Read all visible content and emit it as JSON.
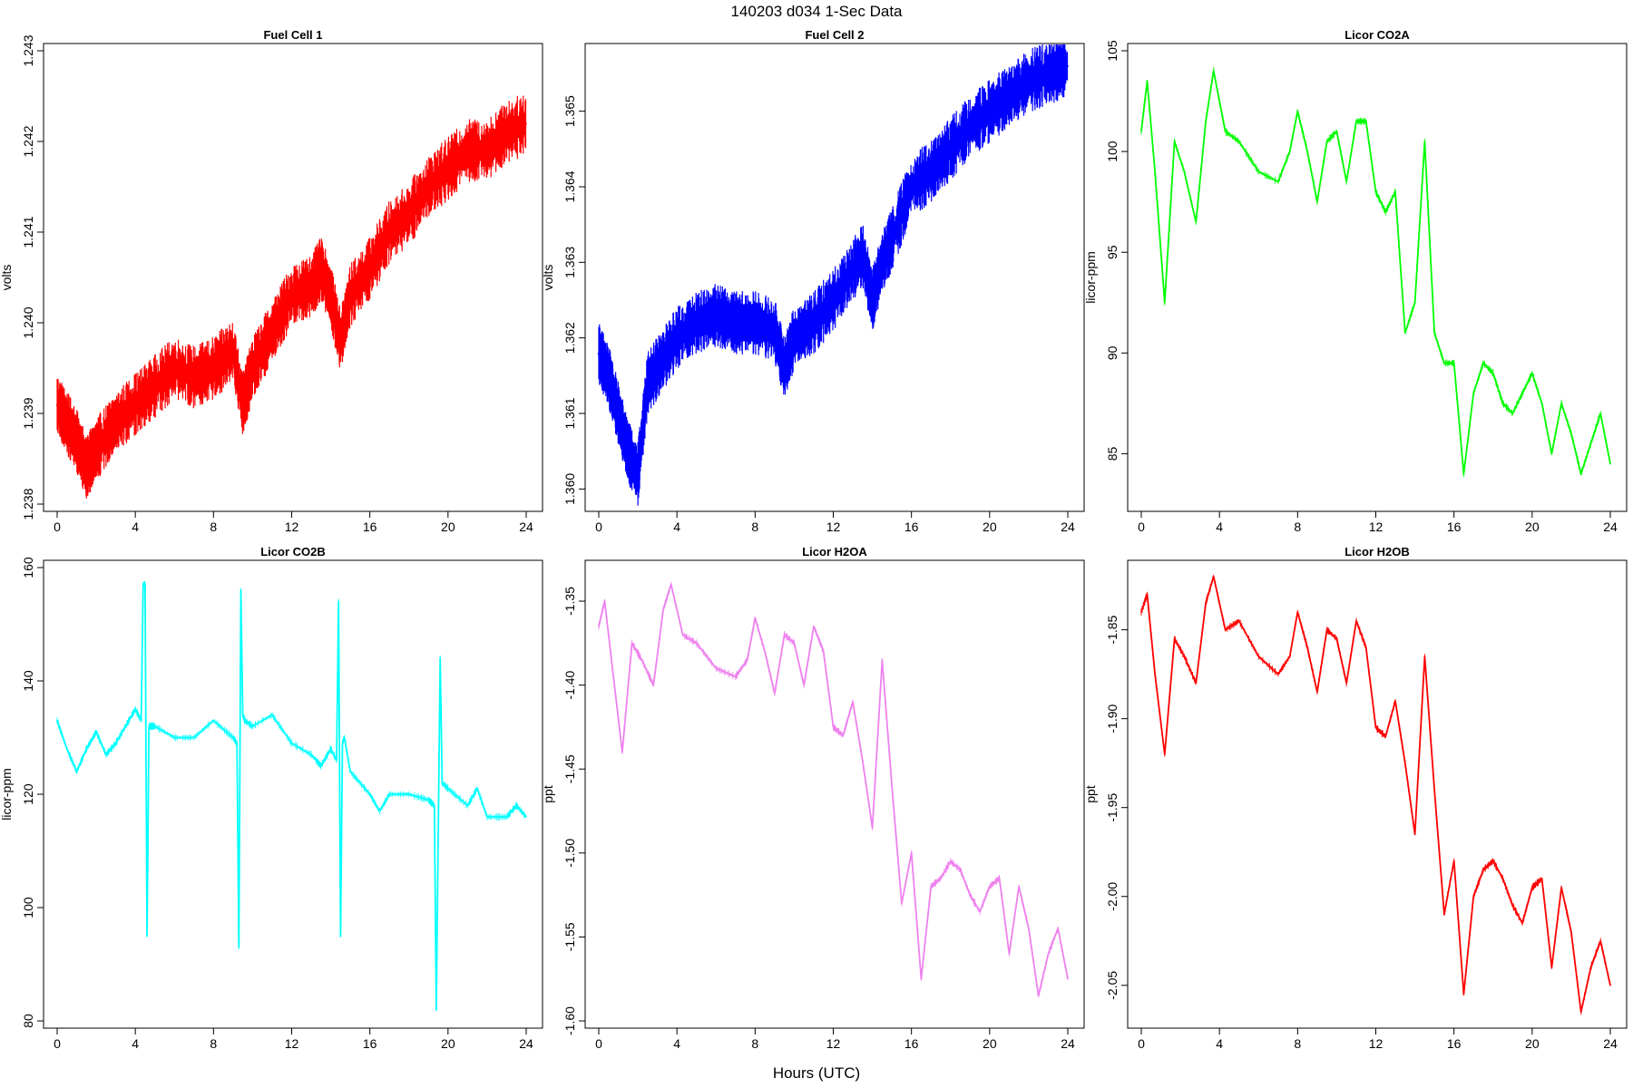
{
  "figure": {
    "title": "140203   d034   1-Sec Data",
    "xlabel": "Hours (UTC)"
  },
  "chart_data": [
    {
      "type": "line",
      "title": "Fuel Cell 1",
      "xlabel": "",
      "ylabel": "volts",
      "color": "#ff0000",
      "xlim": [
        0,
        24
      ],
      "ylim": [
        1.238,
        1.243
      ],
      "xticks": [
        0,
        4,
        8,
        12,
        16,
        20,
        24
      ],
      "yticks": [
        "1.238",
        "1.239",
        "1.240",
        "1.241",
        "1.242",
        "1.243"
      ],
      "x": [
        0,
        0.5,
        1,
        1.5,
        2,
        3,
        4,
        5,
        6,
        7,
        8,
        9,
        9.5,
        10,
        11,
        12,
        13,
        13.5,
        14,
        14.5,
        15,
        16,
        17,
        18,
        19,
        20,
        21,
        22,
        23,
        24
      ],
      "y": [
        1.2391,
        1.2389,
        1.2387,
        1.2384,
        1.2386,
        1.2389,
        1.2391,
        1.2393,
        1.2395,
        1.2394,
        1.2395,
        1.2397,
        1.2391,
        1.2395,
        1.2399,
        1.2403,
        1.2404,
        1.2406,
        1.2403,
        1.2398,
        1.2403,
        1.2406,
        1.241,
        1.2412,
        1.2415,
        1.2417,
        1.2419,
        1.2419,
        1.2421,
        1.2422
      ]
    },
    {
      "type": "line",
      "title": "Fuel Cell 2",
      "xlabel": "",
      "ylabel": "volts",
      "color": "#0000ff",
      "xlim": [
        0,
        24
      ],
      "ylim": [
        1.3598,
        1.3658
      ],
      "xticks": [
        0,
        4,
        8,
        12,
        16,
        20,
        24
      ],
      "yticks": [
        "1.360",
        "1.361",
        "1.362",
        "1.363",
        "1.364",
        "1.365"
      ],
      "x": [
        0,
        0.5,
        1,
        1.5,
        2,
        2.5,
        3,
        4,
        5,
        6,
        7,
        8,
        9,
        9.5,
        10,
        11,
        12,
        13,
        13.5,
        14,
        14.5,
        15,
        16,
        17,
        18,
        19,
        20,
        21,
        22,
        23,
        24
      ],
      "y": [
        1.3618,
        1.3615,
        1.361,
        1.3605,
        1.3602,
        1.3614,
        1.3616,
        1.362,
        1.3622,
        1.3623,
        1.3622,
        1.3622,
        1.3621,
        1.3616,
        1.362,
        1.3622,
        1.3625,
        1.3629,
        1.3631,
        1.3625,
        1.363,
        1.3633,
        1.364,
        1.3642,
        1.3645,
        1.3648,
        1.365,
        1.3652,
        1.3654,
        1.3655,
        1.3656
      ]
    },
    {
      "type": "line",
      "title": "Licor CO2A",
      "xlabel": "",
      "ylabel": "licor-ppm",
      "color": "#00ff00",
      "xlim": [
        0,
        24
      ],
      "ylim": [
        82.5,
        105
      ],
      "xticks": [
        0,
        4,
        8,
        12,
        16,
        20,
        24
      ],
      "yticks": [
        "85",
        "90",
        "95",
        "100",
        "105"
      ],
      "x": [
        0,
        0.3,
        0.7,
        1.2,
        1.7,
        2.2,
        2.8,
        3.3,
        3.7,
        4.3,
        5,
        6,
        7,
        7.6,
        8,
        8.5,
        9,
        9.5,
        10,
        10.5,
        11,
        11.5,
        12,
        12.5,
        13,
        13.5,
        14,
        14.5,
        15,
        15.5,
        16,
        16.5,
        17,
        17.5,
        18,
        18.5,
        19,
        19.5,
        20,
        20.5,
        21,
        21.5,
        22,
        22.5,
        23,
        23.5,
        24
      ],
      "y": [
        101,
        103.5,
        99,
        92.5,
        100.5,
        99,
        96.5,
        101.5,
        104,
        101,
        100.5,
        99,
        98.5,
        100,
        102,
        100,
        97.5,
        100.5,
        101,
        98.5,
        101.5,
        101.5,
        98,
        97,
        98,
        91,
        92.5,
        100.5,
        91,
        89.5,
        89.5,
        84,
        88,
        89.5,
        89,
        87.5,
        87,
        88,
        89,
        87.5,
        85,
        87.5,
        86,
        84,
        85.5,
        87,
        84.5
      ]
    },
    {
      "type": "line",
      "title": "Licor CO2B",
      "xlabel": "",
      "ylabel": "licor-ppm",
      "color": "#00ffff",
      "xlim": [
        0,
        24
      ],
      "ylim": [
        80,
        160
      ],
      "xticks": [
        0,
        4,
        8,
        12,
        16,
        20,
        24
      ],
      "yticks": [
        "80",
        "100",
        "120",
        "140",
        "160"
      ],
      "x": [
        0,
        0.5,
        1,
        1.5,
        2,
        2.5,
        3,
        3.5,
        4,
        4.3,
        4.4,
        4.5,
        4.6,
        4.7,
        5,
        6,
        7,
        8,
        9,
        9.2,
        9.3,
        9.4,
        9.5,
        9.6,
        10,
        11,
        12,
        13,
        13.5,
        14,
        14.3,
        14.4,
        14.5,
        14.6,
        14.7,
        15,
        16,
        16.5,
        17,
        18,
        19,
        19.3,
        19.4,
        19.6,
        19.7,
        20,
        21,
        21.5,
        22,
        23,
        23.5,
        24
      ],
      "y": [
        133,
        128,
        124,
        128,
        131,
        127,
        129,
        132,
        135,
        133,
        157,
        157,
        95,
        132,
        132,
        130,
        130,
        133,
        130,
        129,
        93,
        156,
        134,
        133,
        132,
        134,
        129,
        127,
        125,
        128,
        126,
        154,
        95,
        129,
        130,
        124,
        120,
        117,
        120,
        120,
        119,
        118,
        82,
        144,
        122,
        121,
        118,
        121,
        116,
        116,
        118,
        116
      ]
    },
    {
      "type": "line",
      "title": "Licor H2OA",
      "xlabel": "",
      "ylabel": "ppt",
      "color": "#ee82ee",
      "xlim": [
        0,
        24
      ],
      "ylim": [
        -1.6,
        -1.33
      ],
      "xticks": [
        0,
        4,
        8,
        12,
        16,
        20,
        24
      ],
      "yticks": [
        "-1.60",
        "-1.55",
        "-1.50",
        "-1.45",
        "-1.40",
        "-1.35"
      ],
      "x": [
        0,
        0.3,
        0.7,
        1.2,
        1.7,
        2.2,
        2.8,
        3.3,
        3.7,
        4.3,
        5,
        6,
        7,
        7.6,
        8,
        8.5,
        9,
        9.5,
        10,
        10.5,
        11,
        11.5,
        12,
        12.5,
        13,
        13.5,
        14,
        14.5,
        15,
        15.5,
        16,
        16.5,
        17,
        17.5,
        18,
        18.5,
        19,
        19.5,
        20,
        20.5,
        21,
        21.5,
        22,
        22.5,
        23,
        23.5,
        24
      ],
      "y": [
        -1.365,
        -1.35,
        -1.39,
        -1.44,
        -1.375,
        -1.385,
        -1.4,
        -1.355,
        -1.34,
        -1.37,
        -1.375,
        -1.39,
        -1.395,
        -1.385,
        -1.36,
        -1.38,
        -1.405,
        -1.37,
        -1.375,
        -1.4,
        -1.365,
        -1.38,
        -1.425,
        -1.43,
        -1.41,
        -1.445,
        -1.485,
        -1.385,
        -1.46,
        -1.53,
        -1.5,
        -1.575,
        -1.52,
        -1.515,
        -1.505,
        -1.51,
        -1.525,
        -1.535,
        -1.52,
        -1.515,
        -1.56,
        -1.52,
        -1.545,
        -1.585,
        -1.56,
        -1.545,
        -1.575
      ]
    },
    {
      "type": "line",
      "title": "Licor H2OB",
      "xlabel": "",
      "ylabel": "ppt",
      "color": "#ff0000",
      "xlim": [
        0,
        24
      ],
      "ylim": [
        -2.07,
        -1.815
      ],
      "xticks": [
        0,
        4,
        8,
        12,
        16,
        20,
        24
      ],
      "yticks": [
        "-2.05",
        "-2.00",
        "-1.95",
        "-1.90",
        "-1.85"
      ],
      "x": [
        0,
        0.3,
        0.7,
        1.2,
        1.7,
        2.2,
        2.8,
        3.3,
        3.7,
        4.3,
        5,
        6,
        7,
        7.6,
        8,
        8.5,
        9,
        9.5,
        10,
        10.5,
        11,
        11.5,
        12,
        12.5,
        13,
        13.5,
        14,
        14.5,
        15,
        15.5,
        16,
        16.5,
        17,
        17.5,
        18,
        18.5,
        19,
        19.5,
        20,
        20.5,
        21,
        21.5,
        22,
        22.5,
        23,
        23.5,
        24
      ],
      "y": [
        -1.84,
        -1.83,
        -1.875,
        -1.92,
        -1.855,
        -1.865,
        -1.88,
        -1.835,
        -1.82,
        -1.85,
        -1.845,
        -1.865,
        -1.875,
        -1.865,
        -1.84,
        -1.86,
        -1.885,
        -1.85,
        -1.855,
        -1.88,
        -1.845,
        -1.86,
        -1.905,
        -1.91,
        -1.89,
        -1.925,
        -1.965,
        -1.865,
        -1.94,
        -2.01,
        -1.98,
        -2.055,
        -2.0,
        -1.985,
        -1.98,
        -1.99,
        -2.005,
        -2.015,
        -1.995,
        -1.99,
        -2.04,
        -1.995,
        -2.02,
        -2.065,
        -2.04,
        -2.025,
        -2.05
      ]
    }
  ]
}
